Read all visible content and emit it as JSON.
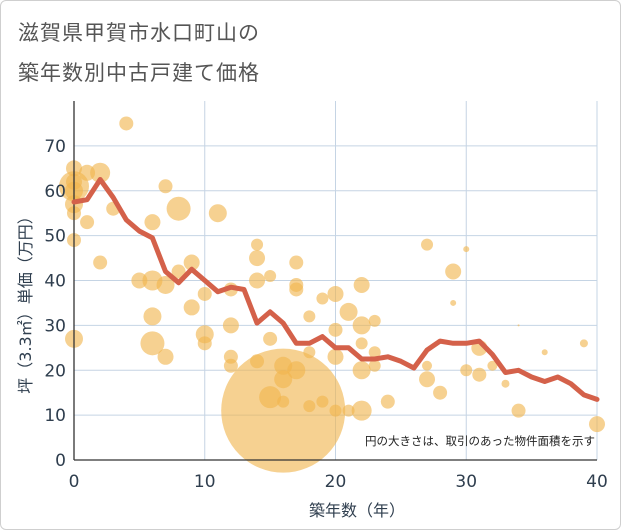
{
  "title": [
    "滋賀県甲賀市水口町山の",
    "築年数別中古戸建て価格"
  ],
  "chart_data": {
    "type": "scatter",
    "xlabel": "築年数（年）",
    "ylabel": "坪（3.3㎡）単価（万円）",
    "xlim": [
      0,
      40
    ],
    "ylim": [
      0,
      80
    ],
    "x_ticks": [
      0,
      10,
      20,
      30,
      40
    ],
    "y_ticks": [
      0,
      10,
      20,
      30,
      40,
      50,
      60,
      70
    ],
    "grid": true,
    "note": "円の大きさは、取引のあった物件面積を示す",
    "colors": {
      "bubble": "#f0b54e",
      "line": "#d4614a",
      "grid": "#c5d4e4",
      "axis": "#333333"
    },
    "line": {
      "x": [
        0,
        1,
        2,
        3,
        4,
        5,
        6,
        7,
        8,
        9,
        10,
        11,
        12,
        13,
        14,
        15,
        16,
        17,
        18,
        19,
        20,
        21,
        22,
        23,
        24,
        25,
        26,
        27,
        28,
        29,
        30,
        31,
        32,
        33,
        34,
        35,
        36,
        37,
        38,
        39,
        40
      ],
      "y": [
        57.5,
        58,
        62.5,
        58.5,
        53.5,
        51,
        49.5,
        42,
        39.5,
        42.5,
        40,
        37.5,
        38.5,
        38,
        30.5,
        33,
        30.5,
        26,
        26,
        27.5,
        25,
        25,
        22.5,
        22.5,
        23,
        22,
        20.5,
        24.5,
        26.5,
        26,
        26,
        26.5,
        23.5,
        19.5,
        20,
        18.5,
        17.5,
        18.5,
        17,
        14.5,
        13.5
      ]
    },
    "bubbles": [
      {
        "x": 0,
        "y": 61,
        "r": 15
      },
      {
        "x": 0,
        "y": 60,
        "r": 9
      },
      {
        "x": 0,
        "y": 57,
        "r": 9
      },
      {
        "x": 0,
        "y": 62,
        "r": 8
      },
      {
        "x": 0,
        "y": 55,
        "r": 7
      },
      {
        "x": 0,
        "y": 49,
        "r": 7
      },
      {
        "x": 0,
        "y": 65,
        "r": 8
      },
      {
        "x": 0,
        "y": 27,
        "r": 9
      },
      {
        "x": 1,
        "y": 64,
        "r": 8
      },
      {
        "x": 1,
        "y": 53,
        "r": 7
      },
      {
        "x": 2,
        "y": 64,
        "r": 10
      },
      {
        "x": 2,
        "y": 44,
        "r": 7
      },
      {
        "x": 3,
        "y": 56,
        "r": 7
      },
      {
        "x": 4,
        "y": 75,
        "r": 7
      },
      {
        "x": 5,
        "y": 40,
        "r": 8
      },
      {
        "x": 6,
        "y": 53,
        "r": 8
      },
      {
        "x": 6,
        "y": 40,
        "r": 10
      },
      {
        "x": 6,
        "y": 32,
        "r": 9
      },
      {
        "x": 6,
        "y": 26,
        "r": 12
      },
      {
        "x": 7,
        "y": 61,
        "r": 7
      },
      {
        "x": 7,
        "y": 39,
        "r": 9
      },
      {
        "x": 7,
        "y": 23,
        "r": 8
      },
      {
        "x": 8,
        "y": 56,
        "r": 12
      },
      {
        "x": 8,
        "y": 42,
        "r": 7
      },
      {
        "x": 9,
        "y": 44,
        "r": 8
      },
      {
        "x": 9,
        "y": 34,
        "r": 8
      },
      {
        "x": 10,
        "y": 37,
        "r": 7
      },
      {
        "x": 10,
        "y": 28,
        "r": 9
      },
      {
        "x": 10,
        "y": 26,
        "r": 7
      },
      {
        "x": 11,
        "y": 55,
        "r": 9
      },
      {
        "x": 12,
        "y": 30,
        "r": 8
      },
      {
        "x": 12,
        "y": 38,
        "r": 7
      },
      {
        "x": 12,
        "y": 23,
        "r": 7
      },
      {
        "x": 12,
        "y": 21,
        "r": 7
      },
      {
        "x": 14,
        "y": 48,
        "r": 6
      },
      {
        "x": 14,
        "y": 45,
        "r": 8
      },
      {
        "x": 14,
        "y": 40,
        "r": 8
      },
      {
        "x": 14,
        "y": 22,
        "r": 7
      },
      {
        "x": 15,
        "y": 41,
        "r": 6
      },
      {
        "x": 15,
        "y": 27,
        "r": 7
      },
      {
        "x": 15,
        "y": 14,
        "r": 11
      },
      {
        "x": 16,
        "y": 11,
        "r": 62
      },
      {
        "x": 16,
        "y": 21,
        "r": 9
      },
      {
        "x": 16,
        "y": 18,
        "r": 9
      },
      {
        "x": 16,
        "y": 13,
        "r": 6
      },
      {
        "x": 17,
        "y": 44,
        "r": 7
      },
      {
        "x": 17,
        "y": 39,
        "r": 7
      },
      {
        "x": 17,
        "y": 38,
        "r": 7
      },
      {
        "x": 17,
        "y": 20,
        "r": 9
      },
      {
        "x": 18,
        "y": 24,
        "r": 6
      },
      {
        "x": 18,
        "y": 12,
        "r": 6
      },
      {
        "x": 18,
        "y": 32,
        "r": 6
      },
      {
        "x": 19,
        "y": 36,
        "r": 6
      },
      {
        "x": 19,
        "y": 13,
        "r": 6
      },
      {
        "x": 20,
        "y": 37,
        "r": 8
      },
      {
        "x": 20,
        "y": 29,
        "r": 7
      },
      {
        "x": 20,
        "y": 23,
        "r": 8
      },
      {
        "x": 20,
        "y": 11,
        "r": 6
      },
      {
        "x": 21,
        "y": 33,
        "r": 9
      },
      {
        "x": 21,
        "y": 11,
        "r": 6
      },
      {
        "x": 22,
        "y": 39,
        "r": 8
      },
      {
        "x": 22,
        "y": 30,
        "r": 9
      },
      {
        "x": 22,
        "y": 26,
        "r": 6
      },
      {
        "x": 22,
        "y": 20,
        "r": 9
      },
      {
        "x": 22,
        "y": 11,
        "r": 10
      },
      {
        "x": 23,
        "y": 31,
        "r": 6
      },
      {
        "x": 23,
        "y": 24,
        "r": 6
      },
      {
        "x": 23,
        "y": 21,
        "r": 6
      },
      {
        "x": 24,
        "y": 13,
        "r": 7
      },
      {
        "x": 27,
        "y": 48,
        "r": 6
      },
      {
        "x": 27,
        "y": 21,
        "r": 5
      },
      {
        "x": 27,
        "y": 18,
        "r": 8
      },
      {
        "x": 28,
        "y": 15,
        "r": 7
      },
      {
        "x": 29,
        "y": 42,
        "r": 8
      },
      {
        "x": 29,
        "y": 35,
        "r": 3
      },
      {
        "x": 30,
        "y": 47,
        "r": 3
      },
      {
        "x": 30,
        "y": 20,
        "r": 6
      },
      {
        "x": 31,
        "y": 25,
        "r": 8
      },
      {
        "x": 31,
        "y": 19,
        "r": 7
      },
      {
        "x": 32,
        "y": 21,
        "r": 5
      },
      {
        "x": 33,
        "y": 17,
        "r": 4
      },
      {
        "x": 34,
        "y": 30,
        "r": 1
      },
      {
        "x": 34,
        "y": 11,
        "r": 7
      },
      {
        "x": 36,
        "y": 24,
        "r": 3
      },
      {
        "x": 39,
        "y": 26,
        "r": 4
      },
      {
        "x": 40,
        "y": 8,
        "r": 8
      }
    ]
  }
}
